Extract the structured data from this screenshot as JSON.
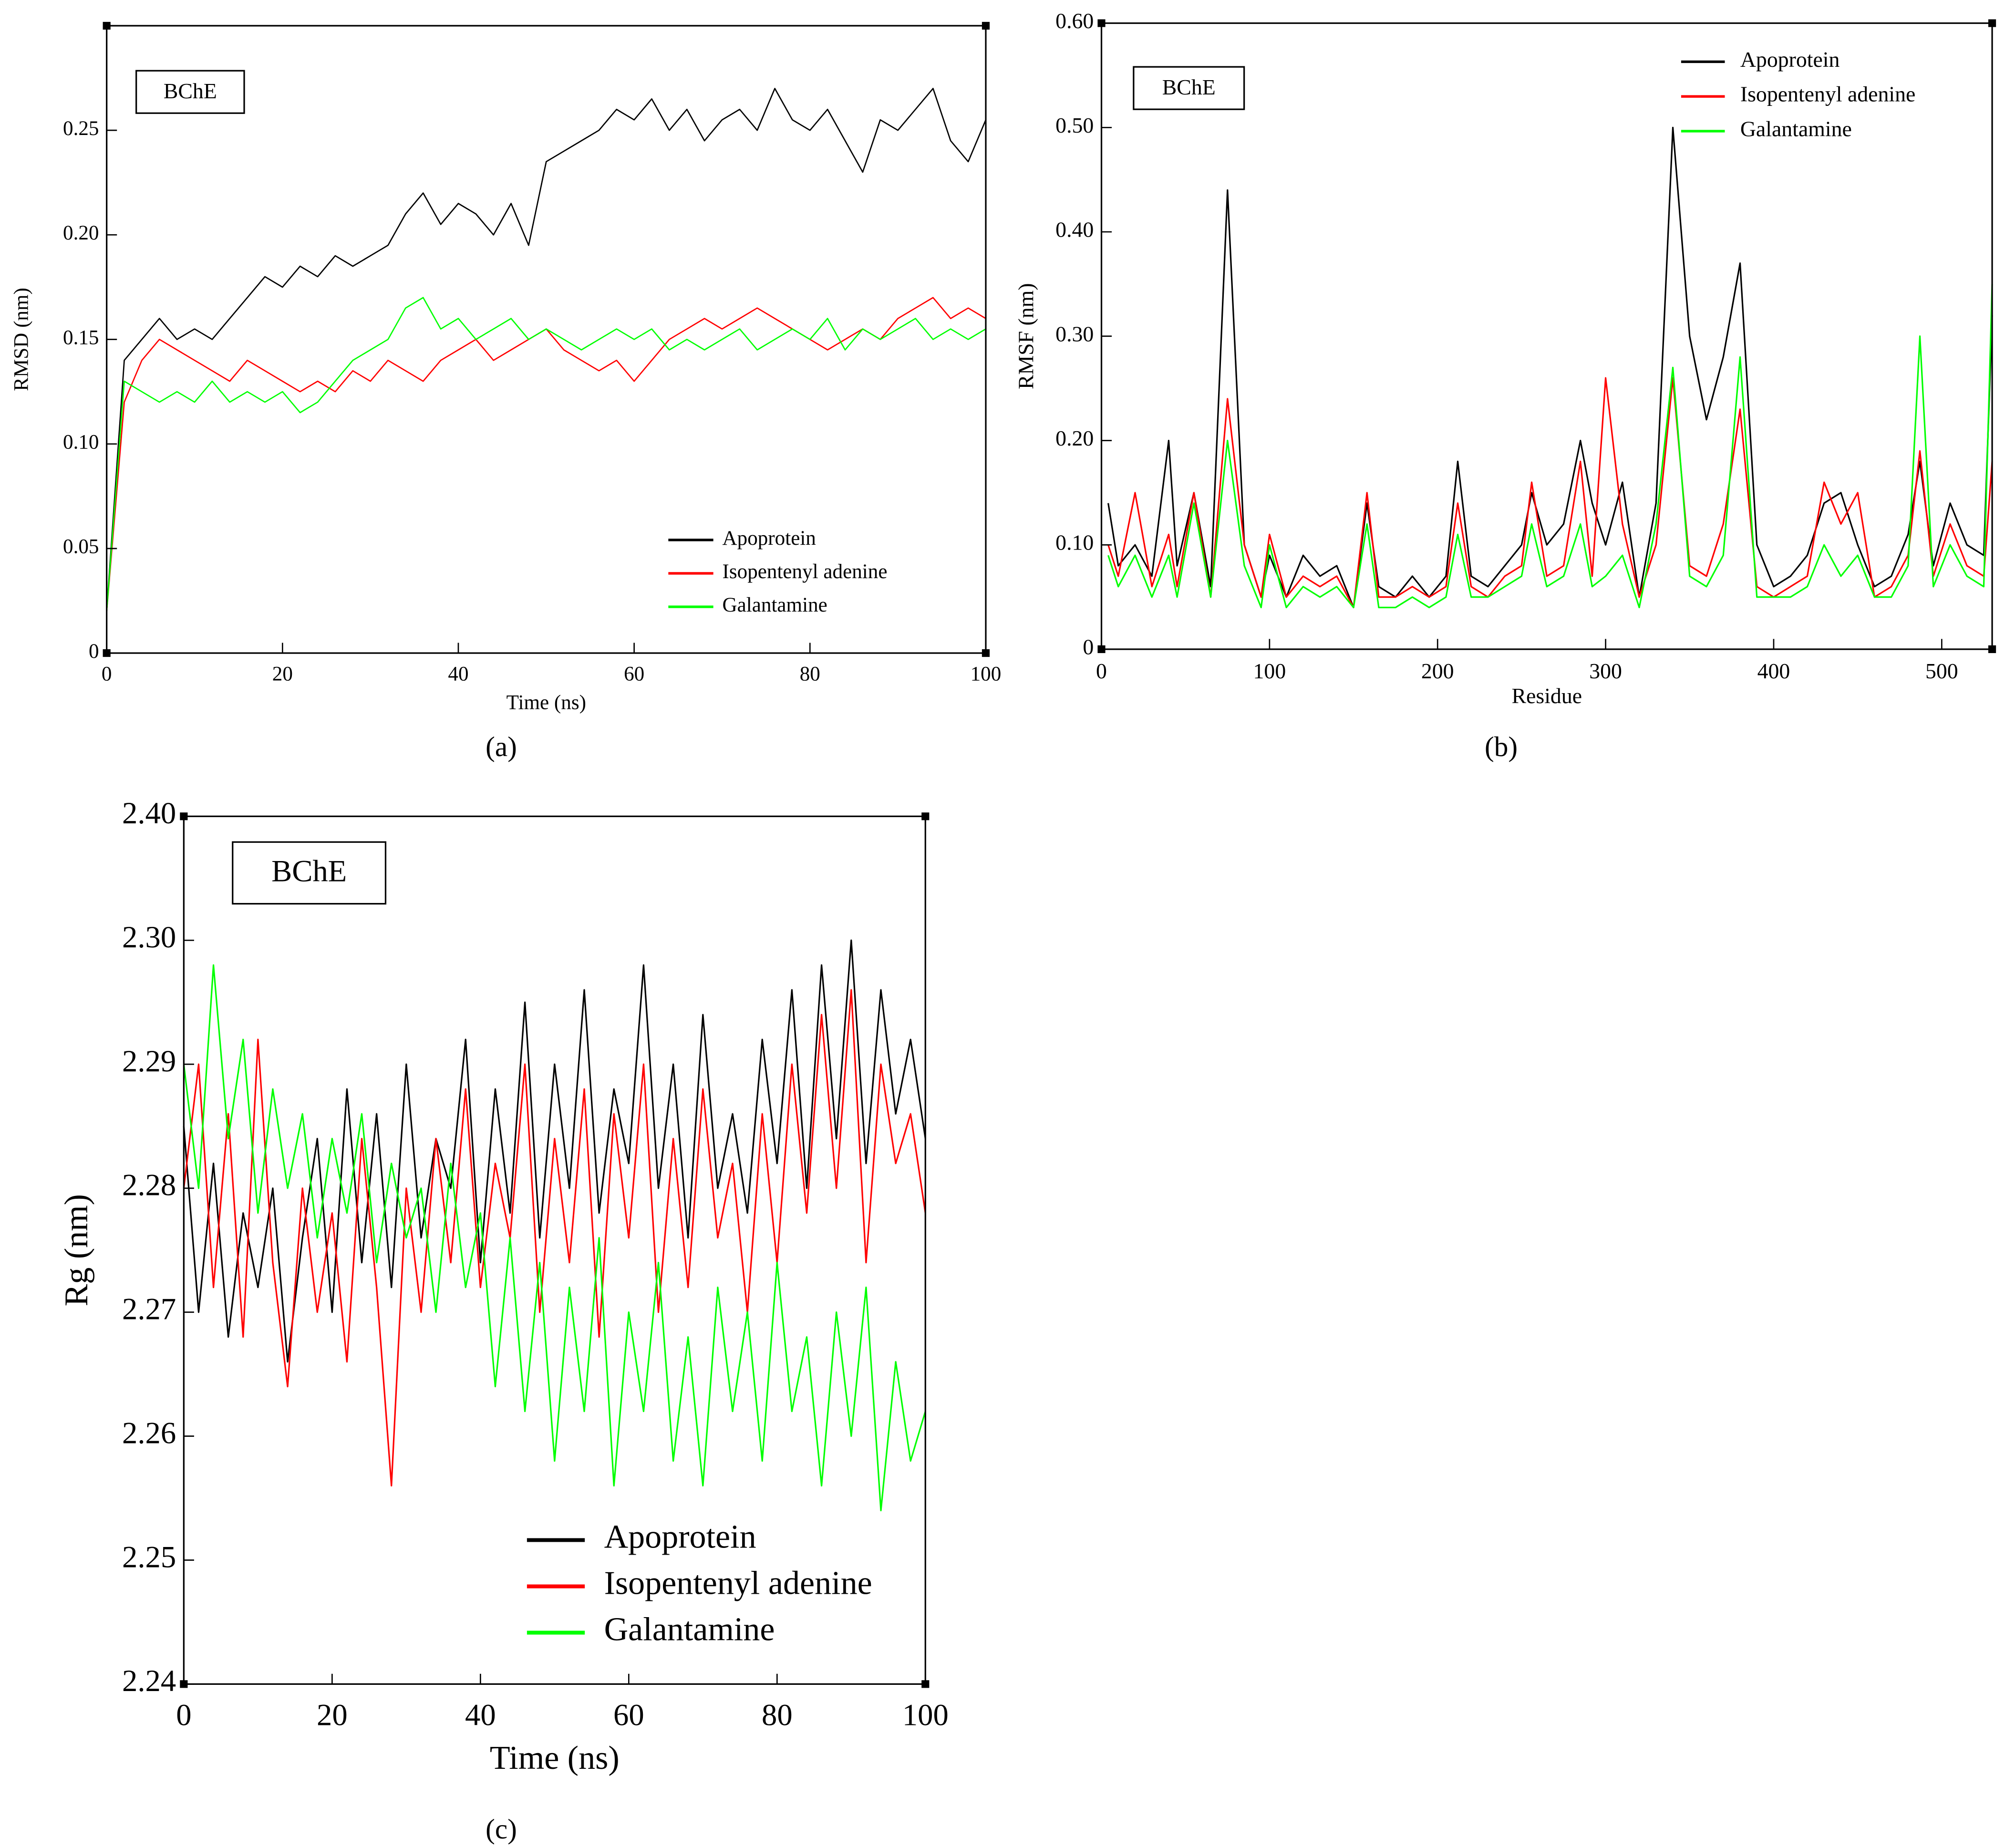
{
  "chart_data": [
    {
      "type": "line",
      "panel_label": "(a)",
      "annotation": "BChE",
      "x_label": "Time (ns)",
      "y_label": "RMSD (nm)",
      "xlim": [
        0,
        100
      ],
      "xticks": [
        0,
        20,
        40,
        60,
        80,
        100
      ],
      "ylim": [
        0,
        0.3
      ],
      "yticks": [
        0,
        0.05,
        {
          "value": 0.1,
          "label": "0.10"
        },
        0.15,
        {
          "value": 0.2,
          "label": "0.20"
        },
        0.25
      ],
      "legend": "lower right",
      "x": [
        0,
        2,
        4,
        6,
        8,
        10,
        12,
        14,
        16,
        18,
        20,
        22,
        24,
        26,
        28,
        30,
        32,
        34,
        36,
        38,
        40,
        42,
        44,
        46,
        48,
        50,
        52,
        54,
        56,
        58,
        60,
        62,
        64,
        66,
        68,
        70,
        72,
        74,
        76,
        78,
        80,
        82,
        84,
        86,
        88,
        90,
        92,
        94,
        96,
        98,
        100
      ],
      "series": [
        {
          "name": "Apoprotein",
          "color": "#000000",
          "values": [
            0.02,
            0.14,
            0.15,
            0.16,
            0.15,
            0.155,
            0.15,
            0.16,
            0.17,
            0.18,
            0.175,
            0.185,
            0.18,
            0.19,
            0.185,
            0.19,
            0.195,
            0.21,
            0.22,
            0.205,
            0.215,
            0.21,
            0.2,
            0.215,
            0.195,
            0.235,
            0.24,
            0.245,
            0.25,
            0.26,
            0.255,
            0.265,
            0.25,
            0.26,
            0.245,
            0.255,
            0.26,
            0.25,
            0.27,
            0.255,
            0.25,
            0.26,
            0.245,
            0.23,
            0.255,
            0.25,
            0.26,
            0.27,
            0.245,
            0.235,
            0.255
          ]
        },
        {
          "name": "Isopentenyl adenine",
          "color": "#ff0000",
          "values": [
            0.02,
            0.12,
            0.14,
            0.15,
            0.145,
            0.14,
            0.135,
            0.13,
            0.14,
            0.135,
            0.13,
            0.125,
            0.13,
            0.125,
            0.135,
            0.13,
            0.14,
            0.135,
            0.13,
            0.14,
            0.145,
            0.15,
            0.14,
            0.145,
            0.15,
            0.155,
            0.145,
            0.14,
            0.135,
            0.14,
            0.13,
            0.14,
            0.15,
            0.155,
            0.16,
            0.155,
            0.16,
            0.165,
            0.16,
            0.155,
            0.15,
            0.145,
            0.15,
            0.155,
            0.15,
            0.16,
            0.165,
            0.17,
            0.16,
            0.165,
            0.16
          ]
        },
        {
          "name": "Galantamine",
          "color": "#00ff00",
          "values": [
            0.02,
            0.13,
            0.125,
            0.12,
            0.125,
            0.12,
            0.13,
            0.12,
            0.125,
            0.12,
            0.125,
            0.115,
            0.12,
            0.13,
            0.14,
            0.145,
            0.15,
            0.165,
            0.17,
            0.155,
            0.16,
            0.15,
            0.155,
            0.16,
            0.15,
            0.155,
            0.15,
            0.145,
            0.15,
            0.155,
            0.15,
            0.155,
            0.145,
            0.15,
            0.145,
            0.15,
            0.155,
            0.145,
            0.15,
            0.155,
            0.15,
            0.16,
            0.145,
            0.155,
            0.15,
            0.155,
            0.16,
            0.15,
            0.155,
            0.15,
            0.155
          ]
        }
      ]
    },
    {
      "type": "line",
      "panel_label": "(b)",
      "annotation": "BChE",
      "x_label": "Residue",
      "y_label": "RMSF (nm)",
      "xlim": [
        0,
        530
      ],
      "xticks": [
        0,
        100,
        200,
        300,
        400,
        500
      ],
      "ylim": [
        0,
        0.6
      ],
      "yticks": [
        0,
        {
          "value": 0.1,
          "label": "0.10"
        },
        {
          "value": 0.2,
          "label": "0.20"
        },
        {
          "value": 0.3,
          "label": "0.30"
        },
        {
          "value": 0.4,
          "label": "0.40"
        },
        {
          "value": 0.5,
          "label": "0.50"
        },
        {
          "value": 0.6,
          "label": "0.60"
        }
      ],
      "legend": "upper right",
      "x": [
        4,
        10,
        20,
        30,
        40,
        45,
        55,
        65,
        75,
        85,
        95,
        100,
        110,
        120,
        130,
        140,
        150,
        158,
        165,
        175,
        185,
        195,
        205,
        212,
        220,
        230,
        240,
        250,
        256,
        265,
        275,
        285,
        292,
        300,
        310,
        320,
        330,
        340,
        350,
        360,
        370,
        380,
        390,
        400,
        410,
        420,
        430,
        440,
        450,
        460,
        470,
        480,
        487,
        495,
        505,
        515,
        525,
        530
      ],
      "series": [
        {
          "name": "Apoprotein",
          "color": "#000000",
          "values": [
            0.14,
            0.08,
            0.1,
            0.07,
            0.2,
            0.08,
            0.15,
            0.06,
            0.44,
            0.1,
            0.05,
            0.09,
            0.05,
            0.09,
            0.07,
            0.08,
            0.04,
            0.14,
            0.06,
            0.05,
            0.07,
            0.05,
            0.07,
            0.18,
            0.07,
            0.06,
            0.08,
            0.1,
            0.15,
            0.1,
            0.12,
            0.2,
            0.14,
            0.1,
            0.16,
            0.05,
            0.14,
            0.5,
            0.3,
            0.22,
            0.28,
            0.37,
            0.1,
            0.06,
            0.07,
            0.09,
            0.14,
            0.15,
            0.1,
            0.06,
            0.07,
            0.11,
            0.18,
            0.08,
            0.14,
            0.1,
            0.09,
            0.32
          ]
        },
        {
          "name": "Isopentenyl adenine",
          "color": "#ff0000",
          "values": [
            0.1,
            0.07,
            0.15,
            0.06,
            0.11,
            0.06,
            0.15,
            0.05,
            0.24,
            0.1,
            0.05,
            0.11,
            0.05,
            0.07,
            0.06,
            0.07,
            0.04,
            0.15,
            0.05,
            0.05,
            0.06,
            0.05,
            0.06,
            0.14,
            0.06,
            0.05,
            0.07,
            0.08,
            0.16,
            0.07,
            0.08,
            0.18,
            0.07,
            0.26,
            0.12,
            0.05,
            0.1,
            0.26,
            0.08,
            0.07,
            0.12,
            0.23,
            0.06,
            0.05,
            0.06,
            0.07,
            0.16,
            0.12,
            0.15,
            0.05,
            0.06,
            0.09,
            0.19,
            0.07,
            0.12,
            0.08,
            0.07,
            0.18
          ]
        },
        {
          "name": "Galantamine",
          "color": "#00ff00",
          "values": [
            0.09,
            0.06,
            0.09,
            0.05,
            0.09,
            0.05,
            0.14,
            0.05,
            0.2,
            0.08,
            0.04,
            0.1,
            0.04,
            0.06,
            0.05,
            0.06,
            0.04,
            0.12,
            0.04,
            0.04,
            0.05,
            0.04,
            0.05,
            0.11,
            0.05,
            0.05,
            0.06,
            0.07,
            0.12,
            0.06,
            0.07,
            0.12,
            0.06,
            0.07,
            0.09,
            0.04,
            0.12,
            0.27,
            0.07,
            0.06,
            0.09,
            0.28,
            0.05,
            0.05,
            0.05,
            0.06,
            0.1,
            0.07,
            0.09,
            0.05,
            0.05,
            0.08,
            0.3,
            0.06,
            0.1,
            0.07,
            0.06,
            0.35
          ]
        }
      ]
    },
    {
      "type": "line",
      "panel_label": "(c)",
      "annotation": "BChE",
      "x_label": "Time (ns)",
      "y_label": "Rg (nm)",
      "xlim": [
        0,
        100
      ],
      "xticks": [
        0,
        20,
        40,
        60,
        80,
        100
      ],
      "ylim": [
        2.24,
        2.31
      ],
      "yticks": [
        2.24,
        2.25,
        2.26,
        2.27,
        2.28,
        2.29,
        {
          "value": 2.3,
          "label": "2.30"
        }
      ],
      "top_tick_label": "2.40",
      "legend": "lower right",
      "x": [
        0,
        2,
        4,
        6,
        8,
        10,
        12,
        14,
        16,
        18,
        20,
        22,
        24,
        26,
        28,
        30,
        32,
        34,
        36,
        38,
        40,
        42,
        44,
        46,
        48,
        50,
        52,
        54,
        56,
        58,
        60,
        62,
        64,
        66,
        68,
        70,
        72,
        74,
        76,
        78,
        80,
        82,
        84,
        86,
        88,
        90,
        92,
        94,
        96,
        98,
        100
      ],
      "series": [
        {
          "name": "Apoprotein",
          "color": "#000000",
          "values": [
            2.285,
            2.27,
            2.282,
            2.268,
            2.278,
            2.272,
            2.28,
            2.266,
            2.276,
            2.284,
            2.27,
            2.288,
            2.274,
            2.286,
            2.272,
            2.29,
            2.276,
            2.284,
            2.28,
            2.292,
            2.274,
            2.288,
            2.278,
            2.295,
            2.276,
            2.29,
            2.28,
            2.296,
            2.278,
            2.288,
            2.282,
            2.298,
            2.28,
            2.29,
            2.276,
            2.294,
            2.28,
            2.286,
            2.278,
            2.292,
            2.282,
            2.296,
            2.28,
            2.298,
            2.284,
            2.3,
            2.282,
            2.296,
            2.286,
            2.292,
            2.284
          ]
        },
        {
          "name": "Isopentenyl adenine",
          "color": "#ff0000",
          "values": [
            2.28,
            2.29,
            2.272,
            2.286,
            2.268,
            2.292,
            2.274,
            2.264,
            2.28,
            2.27,
            2.278,
            2.266,
            2.284,
            2.272,
            2.256,
            2.28,
            2.27,
            2.284,
            2.274,
            2.288,
            2.272,
            2.282,
            2.276,
            2.29,
            2.27,
            2.284,
            2.274,
            2.288,
            2.268,
            2.286,
            2.276,
            2.29,
            2.27,
            2.284,
            2.272,
            2.288,
            2.276,
            2.282,
            2.27,
            2.286,
            2.274,
            2.29,
            2.278,
            2.294,
            2.28,
            2.296,
            2.274,
            2.29,
            2.282,
            2.286,
            2.278
          ]
        },
        {
          "name": "Galantamine",
          "color": "#00ff00",
          "values": [
            2.29,
            2.28,
            2.298,
            2.284,
            2.292,
            2.278,
            2.288,
            2.28,
            2.286,
            2.276,
            2.284,
            2.278,
            2.286,
            2.274,
            2.282,
            2.276,
            2.28,
            2.27,
            2.282,
            2.272,
            2.278,
            2.264,
            2.276,
            2.262,
            2.274,
            2.258,
            2.272,
            2.262,
            2.276,
            2.256,
            2.27,
            2.262,
            2.274,
            2.258,
            2.268,
            2.256,
            2.272,
            2.262,
            2.27,
            2.258,
            2.274,
            2.262,
            2.268,
            2.256,
            2.27,
            2.26,
            2.272,
            2.254,
            2.266,
            2.258,
            2.262
          ]
        }
      ]
    }
  ]
}
